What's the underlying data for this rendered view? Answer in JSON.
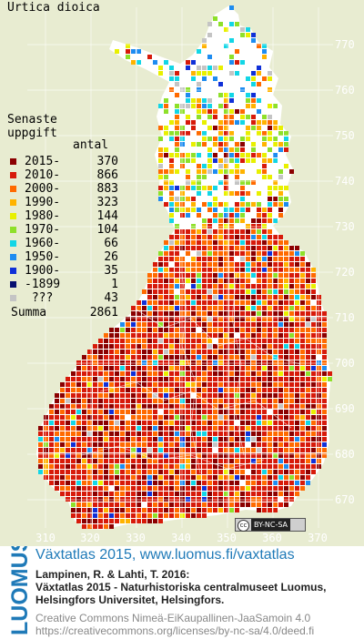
{
  "species": "Urtica dioica",
  "legend": {
    "title_line1": "Senaste",
    "title_line2": "uppgift",
    "count_header": "antal",
    "classes": [
      {
        "label": "2015-",
        "count": "370",
        "color": "#8b0000"
      },
      {
        "label": "2010-",
        "count": "866",
        "color": "#d71a0a"
      },
      {
        "label": "2000-",
        "count": "883",
        "color": "#ff6a00"
      },
      {
        "label": "1990-",
        "count": "323",
        "color": "#ffb300"
      },
      {
        "label": "1980-",
        "count": "144",
        "color": "#e8f000"
      },
      {
        "label": "1970-",
        "count": "104",
        "color": "#8ee02a"
      },
      {
        "label": "1960-",
        "count": "66",
        "color": "#12d6e6"
      },
      {
        "label": "1950-",
        "count": "26",
        "color": "#1e8cf0"
      },
      {
        "label": "1900-",
        "count": "35",
        "color": "#1030d8"
      },
      {
        "label": "-1899",
        "count": "1",
        "color": "#071070"
      },
      {
        "label": " ???",
        "count": "43",
        "color": "#c4c4c4"
      }
    ],
    "total_label": "Summa",
    "total_count": "2861"
  },
  "axes": {
    "y_ticks": [
      "770",
      "760",
      "750",
      "740",
      "730",
      "720",
      "710",
      "700",
      "690",
      "680",
      "670"
    ],
    "x_ticks": [
      "310",
      "320",
      "330",
      "340",
      "350",
      "360",
      "370"
    ]
  },
  "license_badge": {
    "cc": "cc",
    "text": "BY-NC-SA"
  },
  "footer": {
    "logo_text": "LUOMUS",
    "atlas_title": "Växtatlas 2015, www.luomus.fi/vaxtatlas",
    "cite_line1": "Lampinen, R. & Lahti, T. 2016:",
    "cite_line2": "Växtatlas 2015 - Naturhistoriska centralmuseet Luomus,",
    "cite_line3": "Helsingfors Universitet, Helsingfors.",
    "license_line1": "Creative Commons Nimeä-EiKaupallinen-JaaSamoin 4.0",
    "license_line2": "https://creativecommons.org/licenses/by-nc-sa/4.0/deed.fi"
  },
  "colors": {
    "background": "#e8ecd1",
    "land": "#ffffff",
    "grid": "#ffffff",
    "title_blue": "#1f7ab8"
  }
}
